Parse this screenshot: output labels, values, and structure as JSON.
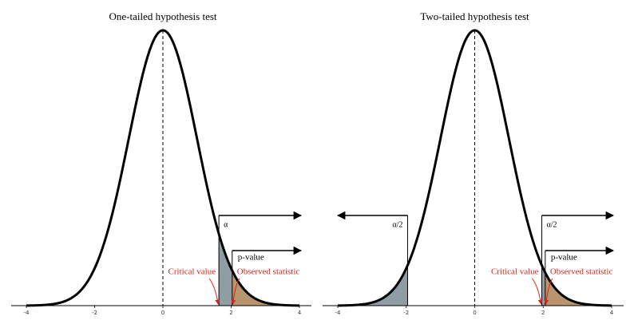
{
  "chart_data": [
    {
      "type": "density",
      "title": "One-tailed hypothesis test",
      "mean": 0,
      "sd": 1,
      "xlim": [
        -4,
        4
      ],
      "xticks": [
        -4,
        -2,
        0,
        2,
        4
      ],
      "critical_values": [
        1.64
      ],
      "observed_statistic": 2.03,
      "alpha_label": "α",
      "pvalue_label": "p-value",
      "critical_label": "Critical value",
      "observed_label": "Observed statistic",
      "alpha_color": "#8f9ea3",
      "pvalue_color": "#b8956c",
      "annotation_color": "#e0201b"
    },
    {
      "type": "density",
      "title": "Two-tailed hypothesis test",
      "mean": 0,
      "sd": 1,
      "xlim": [
        -4,
        4
      ],
      "xticks": [
        -4,
        -2,
        0,
        2,
        4
      ],
      "critical_values": [
        -1.96,
        1.96
      ],
      "observed_statistic": 2.06,
      "alpha_label": "α/2",
      "pvalue_label": "p-value",
      "critical_label": "Critical value",
      "observed_label": "Observed statistic",
      "alpha_color": "#8f9ea3",
      "pvalue_color": "#b8956c",
      "annotation_color": "#e0201b"
    }
  ]
}
